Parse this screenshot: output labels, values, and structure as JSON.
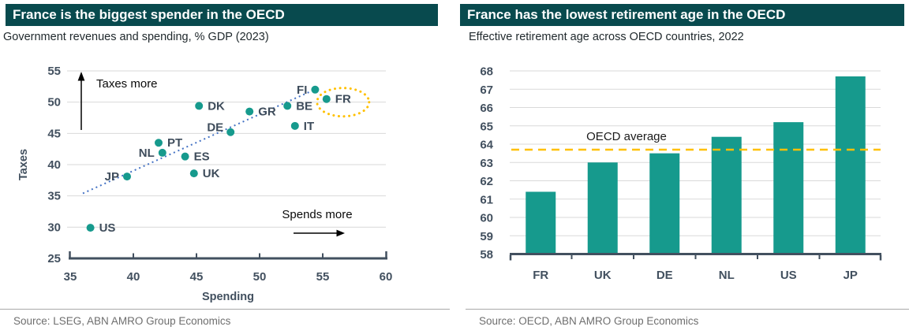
{
  "colors": {
    "banner_bg": "#084a4e",
    "teal": "#169a8d",
    "gold": "#ffc000",
    "trend_blue": "#4472c4",
    "grid": "#d9d9d9",
    "axis": "#42505f"
  },
  "panels": {
    "left": {
      "title": "France is the biggest spender in the OECD",
      "subtitle": "Government revenues and spending, % GDP (2023)",
      "source": "Source: LSEG, ABN AMRO Group Economics"
    },
    "right": {
      "title": "France has the lowest retirement age in the OECD",
      "subtitle": "Effective retirement age across OECD countries, 2022",
      "source": "Source: OECD, ABN AMRO Group Economics"
    }
  },
  "chart_data": [
    {
      "type": "scatter",
      "title": "France is the biggest spender in the OECD",
      "subtitle": "Government revenues and spending, % GDP (2023)",
      "xlabel": "Spending",
      "ylabel": "Taxes",
      "xlim": [
        35,
        60
      ],
      "ylim": [
        25,
        55
      ],
      "xticks": [
        35,
        40,
        45,
        50,
        55,
        60
      ],
      "yticks": [
        25,
        30,
        35,
        40,
        45,
        50,
        55
      ],
      "grid": "horizontal",
      "points": [
        {
          "label": "US",
          "x": 36.6,
          "y": 29.9,
          "side": "right"
        },
        {
          "label": "JP",
          "x": 39.5,
          "y": 38.1,
          "side": "left"
        },
        {
          "label": "NL",
          "x": 42.3,
          "y": 41.9,
          "side": "left"
        },
        {
          "label": "PT",
          "x": 42.0,
          "y": 43.5,
          "side": "right"
        },
        {
          "label": "ES",
          "x": 44.1,
          "y": 41.3,
          "side": "right"
        },
        {
          "label": "UK",
          "x": 44.8,
          "y": 38.6,
          "side": "right"
        },
        {
          "label": "DK",
          "x": 45.2,
          "y": 49.4,
          "side": "right"
        },
        {
          "label": "DE",
          "x": 47.7,
          "y": 45.2,
          "side": "left-up"
        },
        {
          "label": "GR",
          "x": 49.2,
          "y": 48.5,
          "side": "right"
        },
        {
          "label": "BE",
          "x": 52.2,
          "y": 49.4,
          "side": "right"
        },
        {
          "label": "IT",
          "x": 52.8,
          "y": 46.2,
          "side": "right"
        },
        {
          "label": "FI",
          "x": 54.4,
          "y": 52.0,
          "side": "left"
        },
        {
          "label": "FR",
          "x": 55.3,
          "y": 50.5,
          "side": "right",
          "highlighted": true
        }
      ],
      "trendline": {
        "x1": 36.0,
        "y1": 35.4,
        "x2": 54.8,
        "y2": 52.4,
        "style": "dotted"
      },
      "annotations": [
        {
          "text": "Taxes more",
          "arrow": "up"
        },
        {
          "text": "Spends more",
          "arrow": "right"
        }
      ]
    },
    {
      "type": "bar",
      "title": "France has the lowest retirement age in the OECD",
      "subtitle": "Effective retirement age across OECD countries, 2022",
      "categories": [
        "FR",
        "UK",
        "DE",
        "NL",
        "US",
        "JP"
      ],
      "values": [
        61.4,
        63.0,
        63.5,
        64.4,
        65.2,
        67.7
      ],
      "ylim": [
        58,
        68
      ],
      "yticks": [
        58,
        59,
        60,
        61,
        62,
        63,
        64,
        65,
        66,
        67,
        68
      ],
      "grid": "horizontal",
      "reference_line": {
        "value": 63.7,
        "label": "OECD average",
        "style": "dashed"
      }
    }
  ]
}
